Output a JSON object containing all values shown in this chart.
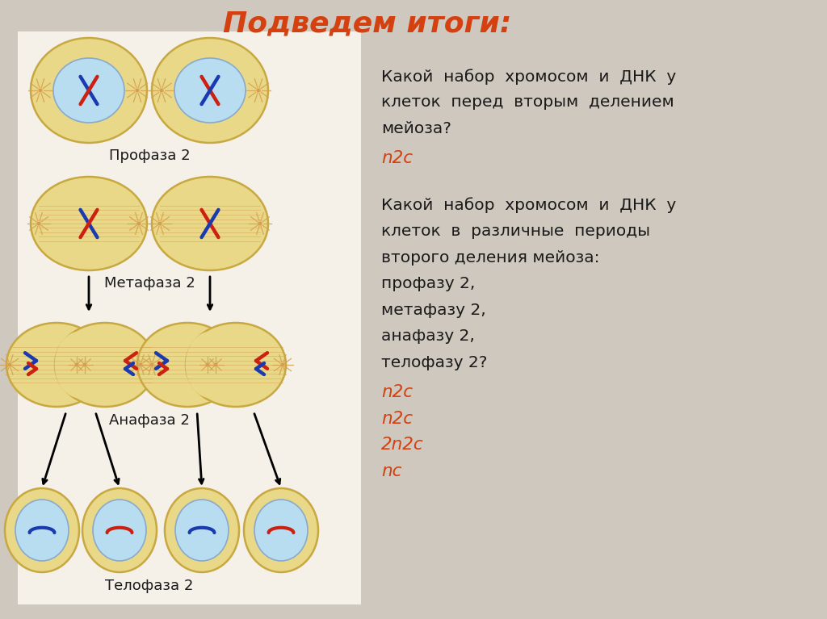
{
  "title": "Подведем итоги:",
  "title_color": "#d44010",
  "title_fontsize": 26,
  "bg_color": "#cec8be",
  "left_bg_color": "#f5f0e8",
  "cell_outer_color": "#e8d888",
  "cell_outer_edge": "#c8a840",
  "nucleus_color": "#b8ddf0",
  "nucleus_edge": "#88aacc",
  "spindle_color": "#d4a050",
  "chrom_blue": "#1a3ab0",
  "chrom_red": "#cc2010",
  "text_color": "#1a1a1a",
  "answer_color": "#d44010",
  "q1_lines": [
    "Какой  набор  хромосом  и  ДНК  у",
    "клеток  перед  вторым  делением",
    "мейоза?"
  ],
  "q1_answer": "n2c",
  "q2_lines": [
    "Какой  набор  хромосом  и  ДНК  у",
    "клеток  в  различные  периоды",
    "второго деления мейоза:",
    "профазу 2,",
    "метафазу 2,",
    "анафазу 2,",
    "телофазу 2?"
  ],
  "q2_answers": [
    "n2c",
    "n2c",
    "2n2c",
    "nc"
  ],
  "label_profaza": "Профаза 2",
  "label_metafaza": "Метафаза 2",
  "label_anafaza": "Анафаза 2",
  "label_telofaza": "Телофаза 2",
  "label_fontsize": 13,
  "text_fontsize": 14.5
}
